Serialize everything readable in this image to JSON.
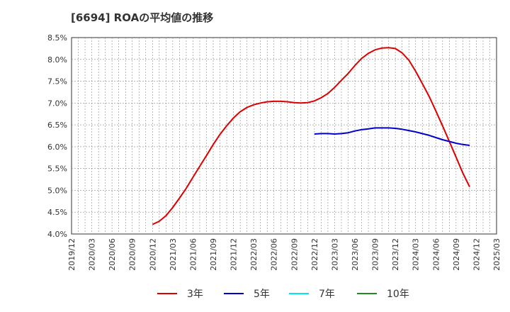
{
  "chart_data": {
    "type": "line",
    "title": "[6694]  ROAの平均値の推移",
    "xlabel": "",
    "ylabel": "",
    "ylim": [
      4.0,
      8.5
    ],
    "y_ticks": [
      "4.0%",
      "4.5%",
      "5.0%",
      "5.5%",
      "6.0%",
      "6.5%",
      "7.0%",
      "7.5%",
      "8.0%",
      "8.5%"
    ],
    "x_ticks": [
      "2019/12",
      "2020/03",
      "2020/06",
      "2020/09",
      "2020/12",
      "2021/03",
      "2021/06",
      "2021/09",
      "2021/12",
      "2022/03",
      "2022/06",
      "2022/09",
      "2022/12",
      "2023/03",
      "2023/06",
      "2023/09",
      "2023/12",
      "2024/03",
      "2024/06",
      "2024/09",
      "2024/12",
      "2025/03"
    ],
    "grid": true,
    "legend_position": "bottom",
    "series": [
      {
        "name": "3年",
        "color": "#dd0000",
        "points": [
          [
            4,
            4.22
          ],
          [
            4.33,
            4.29
          ],
          [
            4.67,
            4.42
          ],
          [
            5,
            4.61
          ],
          [
            5.33,
            4.82
          ],
          [
            5.67,
            5.05
          ],
          [
            6,
            5.3
          ],
          [
            6.33,
            5.55
          ],
          [
            6.67,
            5.8
          ],
          [
            7,
            6.05
          ],
          [
            7.33,
            6.28
          ],
          [
            7.67,
            6.48
          ],
          [
            8,
            6.66
          ],
          [
            8.33,
            6.8
          ],
          [
            8.67,
            6.9
          ],
          [
            9,
            6.96
          ],
          [
            9.33,
            7.0
          ],
          [
            9.67,
            7.03
          ],
          [
            10,
            7.04
          ],
          [
            10.33,
            7.04
          ],
          [
            10.67,
            7.03
          ],
          [
            11,
            7.01
          ],
          [
            11.33,
            7.0
          ],
          [
            11.67,
            7.01
          ],
          [
            12,
            7.05
          ],
          [
            12.33,
            7.12
          ],
          [
            12.67,
            7.22
          ],
          [
            13,
            7.36
          ],
          [
            13.33,
            7.52
          ],
          [
            13.67,
            7.68
          ],
          [
            14,
            7.86
          ],
          [
            14.33,
            8.02
          ],
          [
            14.67,
            8.14
          ],
          [
            15,
            8.22
          ],
          [
            15.33,
            8.26
          ],
          [
            15.67,
            8.27
          ],
          [
            16,
            8.25
          ],
          [
            16.33,
            8.15
          ],
          [
            16.67,
            7.98
          ],
          [
            17,
            7.73
          ],
          [
            17.33,
            7.45
          ],
          [
            17.67,
            7.15
          ],
          [
            18,
            6.82
          ],
          [
            18.33,
            6.48
          ],
          [
            18.67,
            6.12
          ],
          [
            19,
            5.76
          ],
          [
            19.33,
            5.4
          ],
          [
            19.67,
            5.08
          ]
        ]
      },
      {
        "name": "5年",
        "color": "#0000cc",
        "points": [
          [
            12,
            6.29
          ],
          [
            12.33,
            6.3
          ],
          [
            12.67,
            6.3
          ],
          [
            13,
            6.29
          ],
          [
            13.33,
            6.3
          ],
          [
            13.67,
            6.32
          ],
          [
            14,
            6.36
          ],
          [
            14.33,
            6.39
          ],
          [
            14.67,
            6.41
          ],
          [
            15,
            6.43
          ],
          [
            15.33,
            6.43
          ],
          [
            15.67,
            6.43
          ],
          [
            16,
            6.42
          ],
          [
            16.33,
            6.4
          ],
          [
            16.67,
            6.37
          ],
          [
            17,
            6.34
          ],
          [
            17.33,
            6.3
          ],
          [
            17.67,
            6.26
          ],
          [
            18,
            6.21
          ],
          [
            18.33,
            6.16
          ],
          [
            18.67,
            6.12
          ],
          [
            19,
            6.08
          ],
          [
            19.33,
            6.05
          ],
          [
            19.67,
            6.03
          ]
        ]
      },
      {
        "name": "7年",
        "color": "#00e5ee",
        "points": []
      },
      {
        "name": "10年",
        "color": "#228b22",
        "points": []
      }
    ]
  }
}
